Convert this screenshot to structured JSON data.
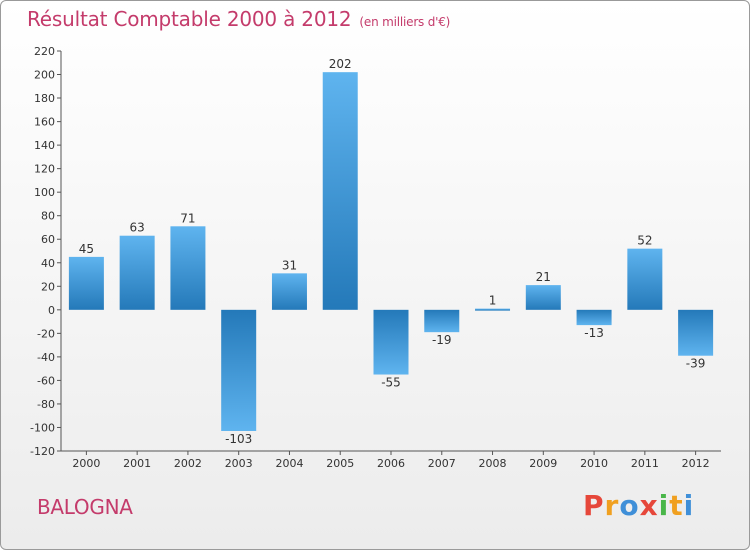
{
  "header": {
    "title": "Résultat Comptable 2000 à 2012",
    "subtitle": "(en milliers d'€)"
  },
  "footer": {
    "commune": "BALOGNA",
    "logo": {
      "letters": [
        "P",
        "r",
        "o",
        "x",
        "i",
        "t",
        "i"
      ],
      "colors": [
        "#e6473a",
        "#f0a020",
        "#3f8fd8",
        "#e6473a",
        "#49b649",
        "#f0a020",
        "#3f8fd8"
      ]
    }
  },
  "colors": {
    "bar_light": "#5fb4ef",
    "bar_dark": "#2479b9",
    "accent": "#c43b6b"
  },
  "chart_data": {
    "type": "bar",
    "categories": [
      "2000",
      "2001",
      "2002",
      "2003",
      "2004",
      "2005",
      "2006",
      "2007",
      "2008",
      "2009",
      "2010",
      "2011",
      "2012"
    ],
    "values": [
      45,
      63,
      71,
      -103,
      31,
      202,
      -55,
      -19,
      1,
      21,
      -13,
      52,
      -39
    ],
    "value_labels": [
      "45",
      "63",
      "71",
      "-103",
      "31",
      "202",
      "-55",
      "-19",
      "1",
      "21",
      "-13",
      "52",
      "-39"
    ],
    "ylim": [
      -120,
      220
    ],
    "yticks": [
      -120,
      -100,
      -80,
      -60,
      -40,
      -20,
      0,
      20,
      40,
      60,
      80,
      100,
      120,
      140,
      160,
      180,
      200,
      220
    ],
    "grid": false,
    "xlabel": "",
    "ylabel": ""
  }
}
